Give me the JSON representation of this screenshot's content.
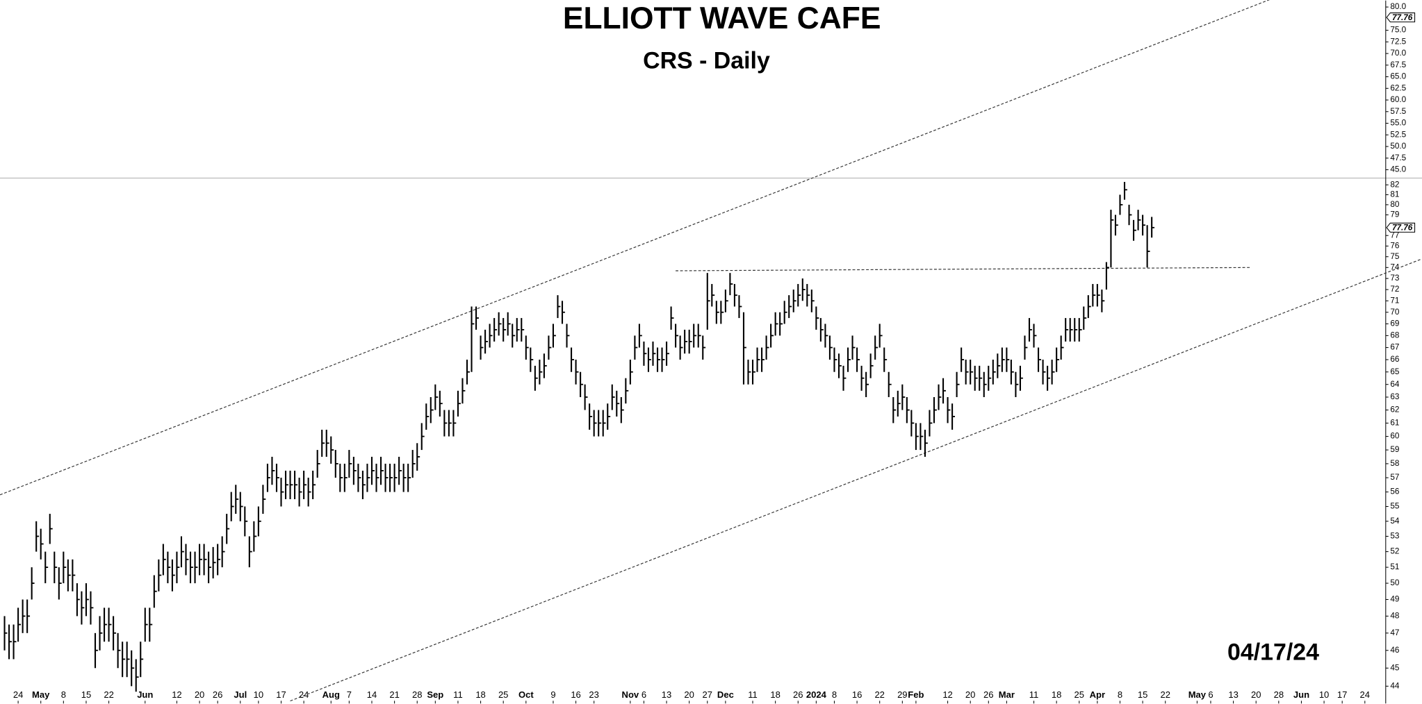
{
  "chart_data": {
    "type": "ohlc",
    "title": "ELLIOTT WAVE CAFE",
    "subtitle": "CRS - Daily",
    "date_label": "04/17/24",
    "color": "#000000",
    "log_scale": true,
    "grid": false,
    "last_price": 77.76,
    "xlim": [
      -4,
      301.6
    ],
    "xticks": [
      {
        "value": 0,
        "label": "24"
      },
      {
        "value": 5,
        "label": "May"
      },
      {
        "value": 10,
        "label": "8"
      },
      {
        "value": 15,
        "label": "15"
      },
      {
        "value": 20,
        "label": "22"
      },
      {
        "value": 28,
        "label": "Jun"
      },
      {
        "value": 35,
        "label": "12"
      },
      {
        "value": 40,
        "label": "20"
      },
      {
        "value": 44,
        "label": "26"
      },
      {
        "value": 49,
        "label": "Jul"
      },
      {
        "value": 53,
        "label": "10"
      },
      {
        "value": 58,
        "label": "17"
      },
      {
        "value": 63,
        "label": "24"
      },
      {
        "value": 69,
        "label": "Aug"
      },
      {
        "value": 73,
        "label": "7"
      },
      {
        "value": 78,
        "label": "14"
      },
      {
        "value": 83,
        "label": "21"
      },
      {
        "value": 88,
        "label": "28"
      },
      {
        "value": 92,
        "label": "Sep"
      },
      {
        "value": 97,
        "label": "11"
      },
      {
        "value": 102,
        "label": "18"
      },
      {
        "value": 107,
        "label": "25"
      },
      {
        "value": 112,
        "label": "Oct"
      },
      {
        "value": 118,
        "label": "9"
      },
      {
        "value": 123,
        "label": "16"
      },
      {
        "value": 127,
        "label": "23"
      },
      {
        "value": 135,
        "label": "Nov"
      },
      {
        "value": 138,
        "label": "6"
      },
      {
        "value": 143,
        "label": "13"
      },
      {
        "value": 148,
        "label": "20"
      },
      {
        "value": 152,
        "label": "27"
      },
      {
        "value": 156,
        "label": "Dec"
      },
      {
        "value": 162,
        "label": "11"
      },
      {
        "value": 167,
        "label": "18"
      },
      {
        "value": 172,
        "label": "26"
      },
      {
        "value": 176,
        "label": "2024"
      },
      {
        "value": 180,
        "label": "8"
      },
      {
        "value": 185,
        "label": "16"
      },
      {
        "value": 190,
        "label": "22"
      },
      {
        "value": 195,
        "label": "29"
      },
      {
        "value": 198,
        "label": "Feb"
      },
      {
        "value": 205,
        "label": "12"
      },
      {
        "value": 210,
        "label": "20"
      },
      {
        "value": 214,
        "label": "26"
      },
      {
        "value": 218,
        "label": "Mar"
      },
      {
        "value": 224,
        "label": "11"
      },
      {
        "value": 229,
        "label": "18"
      },
      {
        "value": 234,
        "label": "25"
      },
      {
        "value": 238,
        "label": "Apr"
      },
      {
        "value": 243,
        "label": "8"
      },
      {
        "value": 248,
        "label": "15"
      },
      {
        "value": 253,
        "label": "22"
      },
      {
        "value": 260,
        "label": "May"
      },
      {
        "value": 263,
        "label": "6"
      },
      {
        "value": 268,
        "label": "13"
      },
      {
        "value": 273,
        "label": "20"
      },
      {
        "value": 278,
        "label": "28"
      },
      {
        "value": 283,
        "label": "Jun"
      },
      {
        "value": 288,
        "label": "10"
      },
      {
        "value": 292,
        "label": "17"
      },
      {
        "value": 297,
        "label": "24"
      }
    ],
    "ylim": [
      43.6,
      82.6
    ],
    "yticks": [
      44,
      45,
      46,
      47,
      48,
      49,
      50,
      51,
      52,
      53,
      54,
      55,
      56,
      57,
      58,
      59,
      60,
      61,
      62,
      63,
      64,
      65,
      66,
      67,
      68,
      69,
      70,
      71,
      72,
      73,
      74,
      75,
      76,
      77,
      79,
      80,
      81,
      82
    ],
    "overview": {
      "ylim": [
        43.6,
        81.4
      ],
      "yticks": [
        {
          "value": 45,
          "label": "45.0"
        },
        47.5,
        {
          "value": 50,
          "label": "50.0"
        },
        52.5,
        {
          "value": 55,
          "label": "55.0"
        },
        57.5,
        {
          "value": 60,
          "label": "60.0"
        },
        62.5,
        {
          "value": 65,
          "label": "65.0"
        },
        67.5,
        {
          "value": 70,
          "label": "70.0"
        },
        72.5,
        {
          "value": 75,
          "label": "75.0"
        },
        {
          "value": 80,
          "label": "80.0"
        }
      ]
    },
    "trendlines": [
      [
        [
          -4,
          55.8
        ],
        [
          276,
          103.2
        ]
      ],
      [
        [
          60,
          43.2
        ],
        [
          309.6,
          74.8
        ]
      ],
      [
        [
          145,
          73.7
        ],
        [
          271.6,
          74.0
        ]
      ]
    ],
    "high": [
      48,
      47.5,
      47.5,
      48.5,
      49,
      49,
      51,
      54,
      53.5,
      52,
      54.5,
      52,
      51,
      52,
      51.5,
      51.5,
      50,
      49.5,
      50,
      49.5,
      47,
      48,
      48.5,
      48.5,
      48,
      47,
      46.5,
      46.5,
      46,
      45.5,
      46.5,
      48.5,
      48.5,
      50.5,
      51.5,
      52.5,
      52,
      51.5,
      52,
      53,
      52.5,
      52,
      52,
      52.5,
      52.5,
      52,
      52.3,
      52.5,
      53,
      54.5,
      56,
      56.5,
      56,
      55,
      53,
      54,
      55,
      56.5,
      58,
      58.5,
      58,
      57,
      57.5,
      57.5,
      57.5,
      57,
      57.5,
      57,
      57.5,
      59,
      60.5,
      60.5,
      60,
      59,
      58,
      58,
      59,
      58.5,
      58,
      57.5,
      58,
      58.5,
      58,
      58.5,
      58,
      58,
      58,
      58.5,
      58,
      58,
      59,
      59.5,
      61,
      62.5,
      63,
      64,
      63.5,
      62,
      62,
      62,
      63.5,
      64.5,
      66,
      70.5,
      70.5,
      68,
      68.5,
      69,
      69.5,
      70,
      69.5,
      70,
      69,
      69.5,
      69.5,
      68,
      67,
      65.5,
      66,
      66.5,
      68,
      69,
      71.5,
      71,
      69,
      67,
      66,
      65,
      64,
      62.5,
      62,
      62,
      62,
      62.5,
      64,
      63.5,
      63,
      64.5,
      66,
      68,
      69,
      67.5,
      67,
      67.5,
      67,
      67,
      67.5,
      70.5,
      69,
      68,
      68.5,
      68.5,
      69,
      69,
      68,
      73.5,
      72.5,
      71,
      71,
      72,
      73.5,
      72.5,
      71.5,
      70,
      66,
      66,
      67,
      67,
      68,
      69,
      70,
      70,
      71,
      71.5,
      72,
      72.5,
      73,
      72.5,
      72,
      70.5,
      69.5,
      69,
      68,
      67,
      66.5,
      65.5,
      67,
      68,
      67,
      65.5,
      65,
      66.5,
      68,
      69,
      67,
      65,
      63,
      63.5,
      64,
      63,
      62,
      61,
      61,
      60.5,
      62,
      63,
      64,
      64.5,
      63,
      62.5,
      65,
      67,
      66,
      66,
      65.5,
      65.5,
      65,
      65.5,
      66,
      66.5,
      67,
      67,
      66,
      65,
      65.5,
      68,
      69.5,
      69,
      67,
      66,
      65.5,
      66,
      67,
      68,
      69.5,
      69.5,
      69.5,
      69.5,
      70.5,
      71.5,
      72.5,
      72.5,
      72,
      74.5,
      79.5,
      79,
      81,
      82.3,
      80,
      78.5,
      79.5,
      79,
      78,
      78.8
    ],
    "low": [
      46,
      45.5,
      45.5,
      46.5,
      47,
      47,
      49,
      52,
      51.5,
      50,
      52.5,
      50,
      49,
      50,
      49.5,
      49.5,
      48,
      47.5,
      48,
      47.5,
      45,
      46,
      46.5,
      46.5,
      46,
      45,
      44.5,
      44.5,
      44,
      43.7,
      44.5,
      46.5,
      46.5,
      48.5,
      49.5,
      50.5,
      50,
      49.5,
      50,
      51,
      50.5,
      50,
      50,
      50.5,
      50.5,
      50,
      50.3,
      50.5,
      51,
      52.5,
      54,
      54.5,
      54,
      53,
      51,
      52,
      53,
      54.5,
      56,
      56.5,
      56,
      55,
      55.5,
      55.5,
      55.5,
      55,
      55.5,
      55,
      55.5,
      57,
      58.5,
      58.5,
      58,
      57,
      56,
      56,
      57,
      56.5,
      56,
      55.5,
      56,
      56.5,
      56,
      56.5,
      56,
      56,
      56,
      56.5,
      56,
      56,
      57,
      57.5,
      59,
      60.5,
      61,
      62,
      61.5,
      60,
      60,
      60,
      61.5,
      62.5,
      64,
      65,
      68.5,
      66,
      66.5,
      67,
      67.5,
      68,
      67.5,
      68,
      67,
      67.5,
      67.5,
      66,
      65,
      63.5,
      64,
      64.5,
      66,
      67,
      69.5,
      69,
      67,
      65,
      64,
      63,
      62,
      60.5,
      60,
      60,
      60,
      60.5,
      62,
      61.5,
      61,
      62.5,
      64,
      66,
      67,
      65.5,
      65,
      65.5,
      65,
      65,
      65.5,
      68.5,
      67,
      66,
      66.5,
      66.5,
      67,
      67,
      66,
      68.5,
      70.5,
      69,
      69,
      70,
      71.5,
      70.5,
      69.5,
      64,
      64,
      64,
      65,
      65,
      66,
      67,
      68,
      68,
      69,
      69.5,
      70,
      70.5,
      71,
      70.5,
      70,
      68.5,
      67.5,
      67,
      66,
      65,
      64.5,
      63.5,
      65,
      66,
      65,
      63.5,
      63,
      64.5,
      66,
      67,
      65,
      63,
      61,
      61.5,
      62,
      61,
      60,
      59,
      59,
      58.5,
      60,
      61,
      62,
      62.5,
      61,
      60.5,
      63,
      65,
      64,
      64,
      63.5,
      63.5,
      63,
      63.5,
      64,
      64.5,
      65,
      65,
      64,
      63,
      63.5,
      66,
      67.5,
      67,
      65,
      64,
      63.5,
      64,
      65,
      66,
      67.5,
      67.5,
      67.5,
      67.5,
      68.5,
      69.5,
      70.5,
      70.5,
      70,
      72,
      74,
      77,
      79,
      80.5,
      78,
      76.5,
      77.5,
      77,
      74,
      76.8
    ],
    "close": [
      47,
      46.5,
      46.5,
      47.5,
      48,
      48,
      50,
      53,
      52.5,
      51,
      53.5,
      51,
      50,
      51,
      50.5,
      50.5,
      49,
      48.5,
      49,
      48.5,
      46,
      47,
      47.5,
      47.5,
      47,
      46,
      45.5,
      45.5,
      45,
      44.5,
      45.5,
      47.5,
      47.5,
      49.5,
      50.5,
      51.5,
      51,
      50.5,
      51,
      52,
      51.5,
      51,
      51,
      51.5,
      51.5,
      51,
      51.3,
      51.5,
      52,
      53.5,
      55,
      55.5,
      55,
      54,
      52,
      53,
      54,
      55.5,
      57,
      57.5,
      57,
      56,
      56.5,
      56.5,
      56.5,
      56,
      56.5,
      56,
      56.5,
      58,
      59.5,
      59.5,
      59,
      58,
      57,
      57,
      58,
      57.5,
      57,
      56.5,
      57,
      57.5,
      57,
      57.5,
      57,
      57,
      57,
      57.5,
      57,
      57,
      58,
      58.5,
      60,
      61.5,
      62,
      63,
      62.5,
      61,
      61,
      61,
      62.5,
      63.5,
      65,
      69,
      69.5,
      67,
      67.5,
      68,
      68.5,
      69,
      68.5,
      69,
      68,
      68.5,
      68.5,
      67,
      66,
      64.5,
      65,
      65.5,
      67,
      68,
      70.5,
      70,
      68,
      66,
      65,
      64,
      63,
      61.5,
      61,
      61,
      61,
      61.5,
      63,
      62.5,
      62,
      63.5,
      65,
      67,
      68,
      66.5,
      66,
      66.5,
      66,
      66,
      66.5,
      69.5,
      68,
      67,
      67.5,
      67.5,
      68,
      68,
      67,
      71,
      71.5,
      70,
      70,
      71,
      72.5,
      71.5,
      70.5,
      67,
      65,
      65,
      66,
      66,
      67,
      68,
      69,
      69,
      70,
      70.5,
      71,
      71.5,
      72,
      71.5,
      71,
      69.5,
      68.5,
      68,
      67,
      66,
      65.5,
      64.5,
      66,
      67,
      66,
      64.5,
      64,
      65.5,
      67,
      68,
      66,
      64,
      62,
      62.5,
      63,
      62,
      61,
      60,
      60,
      59.5,
      61,
      62,
      63,
      63.5,
      62,
      61.5,
      64,
      66,
      65,
      65,
      64.5,
      64.5,
      64,
      64.5,
      65,
      65.5,
      66,
      66,
      65,
      64,
      64.5,
      67,
      68.5,
      68,
      66,
      65,
      64.5,
      65,
      66,
      67,
      68.5,
      68.5,
      68.5,
      68.5,
      69.5,
      70.5,
      71.5,
      71.5,
      71,
      74,
      78.5,
      78,
      80,
      81.5,
      79,
      77.5,
      78.5,
      78,
      75.5,
      77.76
    ]
  }
}
